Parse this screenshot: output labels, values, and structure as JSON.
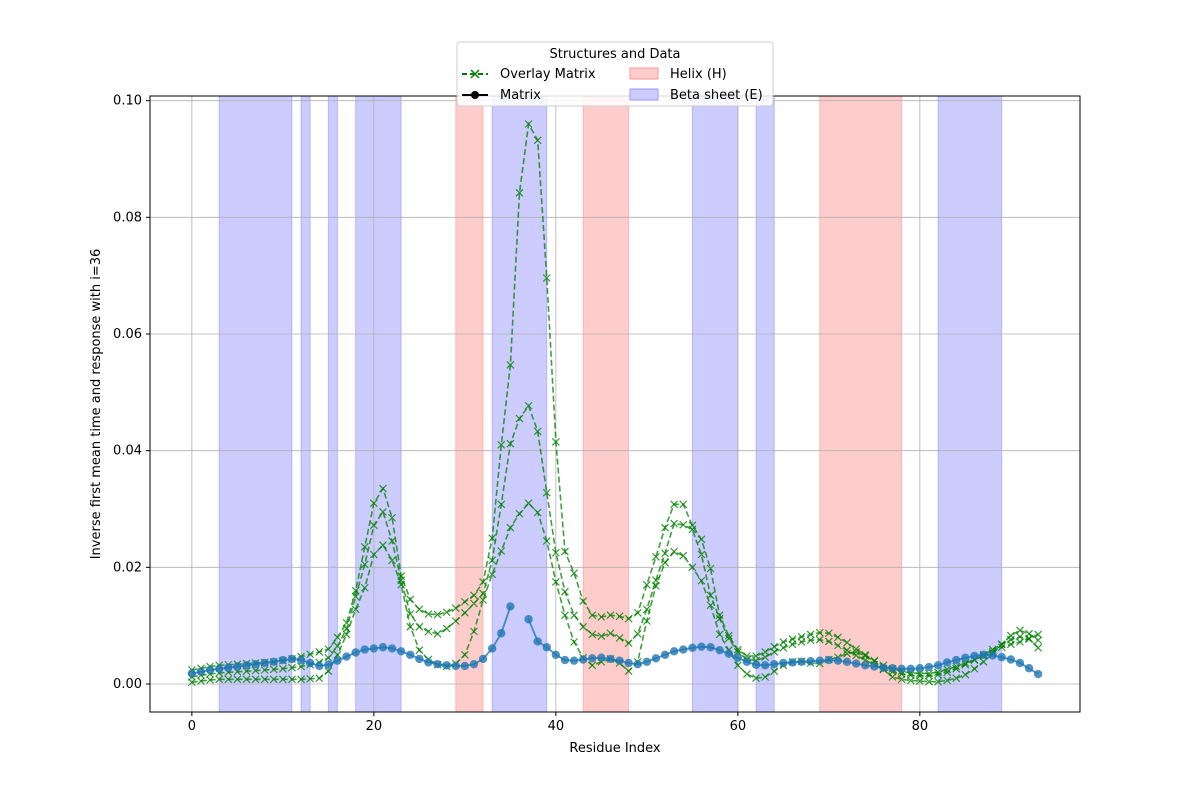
{
  "chart_data": {
    "type": "line",
    "xlabel": "Residue Index",
    "ylabel": "Inverse first mean time and response with i=36",
    "xlim": [
      -4.6,
      97.6
    ],
    "ylim": [
      -0.0048,
      0.1008
    ],
    "xticks": [
      0,
      20,
      40,
      60,
      80
    ],
    "yticks": [
      0.0,
      0.02,
      0.04,
      0.06,
      0.08,
      0.1
    ],
    "ytick_labels": [
      "0.00",
      "0.02",
      "0.04",
      "0.06",
      "0.08",
      "0.10"
    ],
    "grid": true,
    "legend": {
      "title": "Structures and Data",
      "placement": "top-center",
      "entries": [
        {
          "label": "Overlay Matrix",
          "kind": "line-x",
          "color": "#008000"
        },
        {
          "label": "Matrix",
          "kind": "line-dot",
          "color": "#000000"
        },
        {
          "label": "Helix (H)",
          "kind": "patch",
          "color": "#ffcccc"
        },
        {
          "label": "Beta sheet (E)",
          "kind": "patch",
          "color": "#ccccff"
        }
      ]
    },
    "regions": [
      {
        "type": "E",
        "start": 3,
        "end": 11
      },
      {
        "type": "E",
        "start": 12,
        "end": 13
      },
      {
        "type": "E",
        "start": 15,
        "end": 16
      },
      {
        "type": "E",
        "start": 18,
        "end": 23
      },
      {
        "type": "H",
        "start": 29,
        "end": 32
      },
      {
        "type": "E",
        "start": 33,
        "end": 39
      },
      {
        "type": "H",
        "start": 43,
        "end": 48
      },
      {
        "type": "E",
        "start": 55,
        "end": 60
      },
      {
        "type": "E",
        "start": 62,
        "end": 64
      },
      {
        "type": "H",
        "start": 69,
        "end": 78
      },
      {
        "type": "E",
        "start": 82,
        "end": 89
      }
    ],
    "colors": {
      "helix": "#ff0000",
      "beta": "#0000ff",
      "overlay": "#008000",
      "matrix": "#1f77b4"
    },
    "matrix_series": {
      "name": "Matrix",
      "x": [
        0,
        1,
        2,
        3,
        4,
        5,
        6,
        7,
        8,
        9,
        10,
        11,
        12,
        13,
        14,
        15,
        16,
        17,
        18,
        19,
        20,
        21,
        22,
        23,
        24,
        25,
        26,
        27,
        28,
        29,
        30,
        31,
        32,
        33,
        34,
        35,
        36,
        37,
        38,
        39,
        40,
        41,
        42,
        43,
        44,
        45,
        46,
        47,
        48,
        49,
        50,
        51,
        52,
        53,
        54,
        55,
        56,
        57,
        58,
        59,
        60,
        61,
        62,
        63,
        64,
        65,
        66,
        67,
        68,
        69,
        70,
        71,
        72,
        73,
        74,
        75,
        76,
        77,
        78,
        79,
        80,
        81,
        82,
        83,
        84,
        85,
        86,
        87,
        88,
        89,
        90,
        91,
        92,
        93
      ],
      "y": [
        0.0018,
        0.0021,
        0.0024,
        0.0026,
        0.0028,
        0.003,
        0.0032,
        0.0034,
        0.0036,
        0.0038,
        0.0041,
        0.0043,
        0.0041,
        0.0036,
        0.0031,
        0.0033,
        0.004,
        0.0047,
        0.0054,
        0.0059,
        0.0061,
        0.0063,
        0.0061,
        0.0056,
        0.005,
        0.0043,
        0.0037,
        0.0034,
        0.0032,
        0.0031,
        0.0031,
        0.0034,
        0.0043,
        0.0061,
        0.0087,
        0.0133,
        null,
        0.0111,
        0.0073,
        0.0063,
        0.005,
        0.0041,
        0.004,
        0.0042,
        0.0044,
        0.0045,
        0.0043,
        0.004,
        0.0036,
        0.0034,
        0.0038,
        0.0044,
        0.005,
        0.0056,
        0.0059,
        0.0062,
        0.0064,
        0.0063,
        0.0058,
        0.0052,
        0.0045,
        0.0038,
        0.0033,
        0.0032,
        0.0034,
        0.0036,
        0.0037,
        0.0038,
        0.0039,
        0.004,
        0.0041,
        0.004,
        0.0038,
        0.0035,
        0.0032,
        0.003,
        0.0028,
        0.0027,
        0.0026,
        0.0026,
        0.0027,
        0.0029,
        0.0032,
        0.0037,
        0.0041,
        0.0045,
        0.0048,
        0.005,
        0.0049,
        0.0046,
        0.0042,
        0.0036,
        0.0027,
        0.0017
      ]
    },
    "overlay_series": [
      {
        "x": [
          0,
          1,
          2,
          3,
          4,
          5,
          6,
          7,
          8,
          9,
          10,
          11,
          12,
          13,
          14,
          15,
          16,
          17,
          18,
          19,
          20,
          21,
          22,
          23,
          24,
          25,
          26,
          27,
          28,
          29,
          30,
          31,
          32,
          33,
          34,
          35,
          36,
          37,
          38,
          39,
          40,
          41,
          42,
          43,
          44,
          45,
          46,
          47,
          48,
          49,
          50,
          51,
          52,
          53,
          54,
          55,
          56,
          57,
          58,
          59,
          60,
          61,
          62,
          63,
          64,
          65,
          66,
          67,
          68,
          69,
          70,
          71,
          72,
          73,
          74,
          75,
          76,
          77,
          78,
          79,
          80,
          81,
          82,
          83,
          84,
          85,
          86,
          87,
          88,
          89,
          90,
          91,
          92,
          93
        ],
        "y": [
          0.0024,
          0.0027,
          0.003,
          0.0032,
          0.0033,
          0.0034,
          0.0035,
          0.0036,
          0.0037,
          0.0038,
          0.004,
          0.0043,
          0.0047,
          0.0051,
          0.0055,
          0.006,
          0.008,
          0.0105,
          0.016,
          0.0235,
          0.031,
          0.0335,
          0.0285,
          0.0185,
          0.0145,
          0.0128,
          0.012,
          0.0119,
          0.0123,
          0.013,
          0.0141,
          0.0152,
          0.0175,
          0.025,
          0.041,
          0.0547,
          0.0842,
          0.096,
          0.0932,
          0.0696,
          0.0415,
          0.0227,
          0.019,
          0.0142,
          0.0118,
          0.0115,
          0.0118,
          0.0116,
          0.0112,
          0.0122,
          0.017,
          0.0218,
          0.0268,
          0.0308,
          0.0308,
          0.0272,
          0.0248,
          0.0198,
          0.0118,
          0.0083,
          0.0059,
          0.0048,
          0.0048,
          0.0055,
          0.0064,
          0.0072,
          0.0077,
          0.0081,
          0.0085,
          0.0088,
          0.0087,
          0.008,
          0.0071,
          0.006,
          0.005,
          0.004,
          0.0032,
          0.0026,
          0.0022,
          0.0019,
          0.0018,
          0.0018,
          0.002,
          0.0025,
          0.003,
          0.0036,
          0.0042,
          0.0048,
          0.0055,
          0.0063,
          0.0068,
          0.0072,
          0.0078,
          0.0085
        ]
      },
      {
        "x": [
          0,
          1,
          2,
          3,
          4,
          5,
          6,
          7,
          8,
          9,
          10,
          11,
          12,
          13,
          14,
          15,
          16,
          17,
          18,
          19,
          20,
          21,
          22,
          23,
          24,
          25,
          26,
          27,
          28,
          29,
          30,
          31,
          32,
          33,
          34,
          35,
          36,
          37,
          38,
          39,
          40,
          41,
          42,
          43,
          44,
          45,
          46,
          47,
          48,
          49,
          50,
          51,
          52,
          53,
          54,
          55,
          56,
          57,
          58,
          59,
          60,
          61,
          62,
          63,
          64,
          65,
          66,
          67,
          68,
          69,
          70,
          71,
          72,
          73,
          74,
          75,
          76,
          77,
          78,
          79,
          80,
          81,
          82,
          83,
          84,
          85,
          86,
          87,
          88,
          89,
          90,
          91,
          92,
          93
        ],
        "y": [
          0.0012,
          0.0015,
          0.0017,
          0.0019,
          0.002,
          0.0021,
          0.0022,
          0.0023,
          0.0024,
          0.0025,
          0.0026,
          0.0028,
          0.003,
          0.0033,
          0.0037,
          0.0045,
          0.0065,
          0.0095,
          0.015,
          0.0205,
          0.0272,
          0.0295,
          0.0245,
          0.0178,
          0.012,
          0.0098,
          0.009,
          0.0086,
          0.0095,
          0.0108,
          0.0122,
          0.0138,
          0.0155,
          0.0212,
          0.0308,
          0.0412,
          0.0455,
          0.0477,
          0.0433,
          0.0328,
          0.0225,
          0.0158,
          0.0118,
          0.0098,
          0.0085,
          0.0082,
          0.0087,
          0.0079,
          0.007,
          0.0086,
          0.0128,
          0.0178,
          0.0224,
          0.0275,
          0.0273,
          0.0265,
          0.0222,
          0.0152,
          0.0112,
          0.0078,
          0.0055,
          0.0042,
          0.004,
          0.0046,
          0.0055,
          0.0062,
          0.0068,
          0.0072,
          0.0075,
          0.0076,
          0.0073,
          0.0066,
          0.0058,
          0.0049,
          0.0041,
          0.0033,
          0.0026,
          0.0021,
          0.0017,
          0.0015,
          0.0014,
          0.0014,
          0.0016,
          0.002,
          0.0026,
          0.0033,
          0.0041,
          0.005,
          0.0059,
          0.0068,
          0.0076,
          0.0081,
          0.0077,
          0.0062
        ]
      },
      {
        "x": [
          0,
          1,
          2,
          3,
          4,
          5,
          6,
          7,
          8,
          9,
          10,
          11,
          12,
          13,
          14,
          15,
          16,
          17,
          18,
          19,
          20,
          21,
          22,
          23,
          24,
          25,
          26,
          27,
          28,
          29,
          30,
          31,
          32,
          33,
          34,
          35,
          36,
          37,
          38,
          39,
          40,
          41,
          42,
          43,
          44,
          45,
          46,
          47,
          48,
          49,
          50,
          51,
          52,
          53,
          54,
          55,
          56,
          57,
          58,
          59,
          60,
          61,
          62,
          63,
          64,
          65,
          66,
          67,
          68,
          69,
          70,
          71,
          72,
          73,
          74,
          75,
          76,
          77,
          78,
          79,
          80,
          81,
          82,
          83,
          84,
          85,
          86,
          87,
          88,
          89,
          90,
          91,
          92,
          93
        ],
        "y": [
          0.0003,
          0.0005,
          0.0007,
          0.0008,
          0.0008,
          0.0008,
          0.0008,
          0.0008,
          0.0008,
          0.0008,
          0.0008,
          0.0008,
          0.0008,
          0.0009,
          0.001,
          0.0022,
          0.005,
          0.0085,
          0.0128,
          0.0165,
          0.0222,
          0.0238,
          0.0212,
          0.017,
          0.0098,
          0.0058,
          0.0042,
          0.0033,
          0.003,
          0.0035,
          0.005,
          0.009,
          0.0144,
          0.0188,
          0.0228,
          0.0268,
          0.0292,
          0.031,
          0.0294,
          0.0245,
          0.0175,
          0.0118,
          0.0072,
          0.0045,
          0.0032,
          0.0038,
          0.0043,
          0.0036,
          0.0022,
          0.0038,
          0.0108,
          0.0168,
          0.0208,
          0.0227,
          0.022,
          0.02,
          0.0177,
          0.0135,
          0.0085,
          0.0058,
          0.0032,
          0.0017,
          0.001,
          0.0012,
          0.0022,
          0.0032,
          0.0038,
          0.0039,
          0.0036,
          0.0035,
          0.0042,
          0.0046,
          0.0052,
          0.0055,
          0.0048,
          0.0039,
          0.0025,
          0.0012,
          0.0008,
          0.0006,
          0.0005,
          0.0004,
          0.0004,
          0.0006,
          0.001,
          0.0016,
          0.0026,
          0.0038,
          0.0052,
          0.0068,
          0.0083,
          0.0092,
          0.0086,
          0.0075
        ]
      }
    ]
  }
}
